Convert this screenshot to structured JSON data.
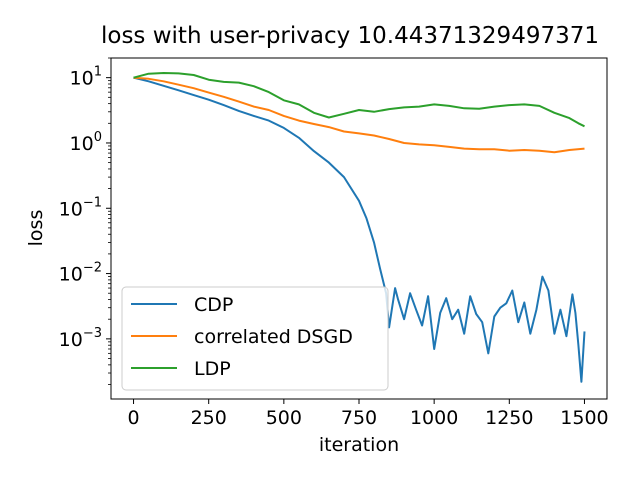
{
  "chart_data": {
    "type": "line",
    "title": "loss with user-privacy  10.44371329497371",
    "xlabel": "iteration",
    "ylabel": "loss",
    "xlim": [
      -75,
      1575
    ],
    "ylim": [
      0.00012,
      20
    ],
    "yscale": "log",
    "grid": false,
    "legend_position": "lower-left",
    "x_ticks": [
      0,
      250,
      500,
      750,
      1000,
      1250,
      1500
    ],
    "y_ticks": [
      {
        "value": 0.001,
        "base": "10",
        "exp": "−3"
      },
      {
        "value": 0.01,
        "base": "10",
        "exp": "−2"
      },
      {
        "value": 0.1,
        "base": "10",
        "exp": "−1"
      },
      {
        "value": 1,
        "base": "10",
        "exp": "0"
      },
      {
        "value": 10,
        "base": "10",
        "exp": "1"
      }
    ],
    "series": [
      {
        "name": "CDP",
        "color": "#1f77b4",
        "x": [
          0,
          50,
          100,
          150,
          200,
          250,
          300,
          350,
          400,
          450,
          500,
          550,
          600,
          650,
          700,
          750,
          775,
          800,
          820,
          840,
          850,
          860,
          870,
          880,
          900,
          920,
          940,
          960,
          980,
          1000,
          1020,
          1040,
          1060,
          1080,
          1100,
          1120,
          1140,
          1160,
          1180,
          1200,
          1220,
          1240,
          1260,
          1280,
          1300,
          1320,
          1340,
          1360,
          1380,
          1400,
          1420,
          1440,
          1460,
          1470,
          1480,
          1490,
          1500
        ],
        "y": [
          10,
          8.8,
          7.5,
          6.4,
          5.4,
          4.6,
          3.8,
          3.1,
          2.6,
          2.2,
          1.7,
          1.2,
          0.75,
          0.5,
          0.3,
          0.13,
          0.07,
          0.03,
          0.012,
          0.005,
          0.0015,
          0.003,
          0.006,
          0.004,
          0.002,
          0.005,
          0.0028,
          0.0016,
          0.0045,
          0.0007,
          0.0025,
          0.0042,
          0.002,
          0.0028,
          0.0012,
          0.0045,
          0.0024,
          0.0018,
          0.0006,
          0.0022,
          0.003,
          0.0035,
          0.0055,
          0.0018,
          0.0036,
          0.0012,
          0.0028,
          0.009,
          0.0055,
          0.0012,
          0.0028,
          0.0011,
          0.0048,
          0.0025,
          0.0008,
          0.00022,
          0.0013
        ]
      },
      {
        "name": "correlated DSGD",
        "color": "#ff7f0e",
        "x": [
          0,
          50,
          100,
          150,
          200,
          250,
          300,
          350,
          400,
          450,
          500,
          550,
          600,
          650,
          700,
          750,
          800,
          850,
          900,
          950,
          1000,
          1050,
          1100,
          1150,
          1200,
          1250,
          1300,
          1350,
          1400,
          1450,
          1500
        ],
        "y": [
          10,
          9.6,
          8.8,
          7.8,
          6.9,
          5.9,
          5.1,
          4.3,
          3.6,
          3.2,
          2.6,
          2.2,
          1.95,
          1.75,
          1.5,
          1.4,
          1.3,
          1.15,
          1.0,
          0.95,
          0.92,
          0.87,
          0.82,
          0.8,
          0.8,
          0.76,
          0.78,
          0.76,
          0.72,
          0.78,
          0.82
        ]
      },
      {
        "name": "LDP",
        "color": "#2ca02c",
        "x": [
          0,
          50,
          100,
          150,
          200,
          250,
          300,
          350,
          400,
          450,
          500,
          550,
          600,
          650,
          700,
          750,
          800,
          850,
          900,
          950,
          1000,
          1050,
          1100,
          1150,
          1200,
          1250,
          1300,
          1350,
          1400,
          1450,
          1480,
          1500
        ],
        "y": [
          10,
          11.5,
          11.8,
          11.6,
          11.0,
          9.3,
          8.6,
          8.4,
          7.4,
          6.0,
          4.5,
          3.9,
          2.9,
          2.45,
          2.8,
          3.2,
          3.0,
          3.3,
          3.5,
          3.6,
          3.9,
          3.7,
          3.4,
          3.35,
          3.6,
          3.8,
          3.9,
          3.7,
          2.9,
          2.4,
          2.0,
          1.8
        ]
      }
    ]
  }
}
